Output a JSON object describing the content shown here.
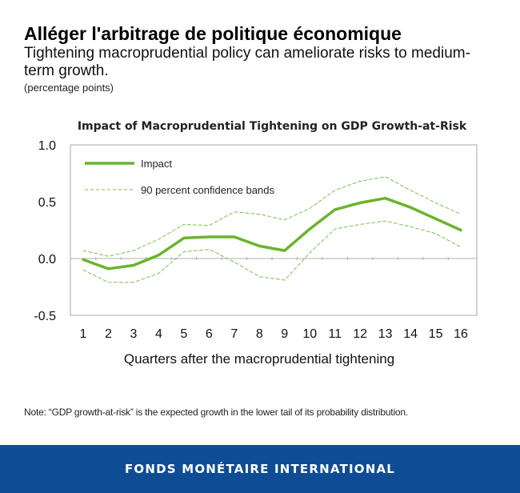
{
  "header": {
    "title": "Alléger l'arbitrage de politique économique",
    "subtitle": "Tightening macroprudential policy can ameliorate risks to medium-term growth.",
    "units": "(percentage points)"
  },
  "note": "Note: “GDP growth-at-risk” is the expected growth in the lower tail of its probability distribution.",
  "footer": {
    "org": "FONDS MONÉTAIRE INTERNATIONAL"
  },
  "colors": {
    "impact": "#6ab42d",
    "bands": "#7cc046",
    "footer": "#0f4c96"
  },
  "chart_data": {
    "type": "line",
    "title": "Impact of Macroprudential Tightening on GDP Growth-at-Risk",
    "xlabel": "Quarters after the macroprudential tightening",
    "ylabel": "",
    "x": [
      1,
      2,
      3,
      4,
      5,
      6,
      7,
      8,
      9,
      10,
      11,
      12,
      13,
      14,
      15,
      16
    ],
    "ylim": [
      -0.5,
      1.0
    ],
    "yticks": [
      "1.0",
      "0.5",
      "0.0",
      "-0.5"
    ],
    "ytick_values": [
      1.0,
      0.5,
      0.0,
      -0.5
    ],
    "legend_position": "top-left",
    "series": [
      {
        "name": "Impact",
        "style": "solid",
        "values": [
          -0.01,
          -0.09,
          -0.06,
          0.03,
          0.18,
          0.19,
          0.19,
          0.11,
          0.07,
          0.26,
          0.43,
          0.49,
          0.53,
          0.45,
          0.35,
          0.25
        ]
      },
      {
        "name": "90 percent confidence bands",
        "style": "dashed",
        "values": [
          0.07,
          0.02,
          0.07,
          0.17,
          0.3,
          0.29,
          0.41,
          0.39,
          0.34,
          0.44,
          0.6,
          0.68,
          0.72,
          0.6,
          0.49,
          0.39
        ]
      },
      {
        "name": "90 percent confidence bands (lower)",
        "style": "dashed",
        "legend": false,
        "values": [
          -0.1,
          -0.21,
          -0.21,
          -0.13,
          0.06,
          0.08,
          -0.03,
          -0.16,
          -0.19,
          0.05,
          0.26,
          0.3,
          0.33,
          0.28,
          0.22,
          0.1
        ]
      }
    ]
  }
}
